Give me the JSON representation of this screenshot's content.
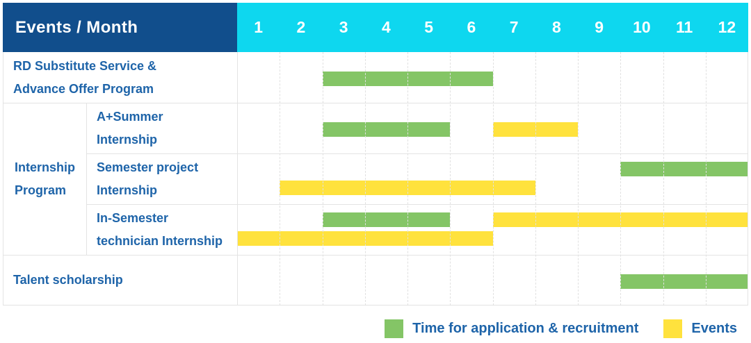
{
  "header": {
    "label": "Events / Month",
    "months": [
      "1",
      "2",
      "3",
      "4",
      "5",
      "6",
      "7",
      "8",
      "9",
      "10",
      "11",
      "12"
    ]
  },
  "group_cell": {
    "label": "Internship Program"
  },
  "legend": {
    "items": [
      {
        "label": "Time for application & recruitment",
        "color_key": "green"
      },
      {
        "label": "Events",
        "color_key": "yellow"
      }
    ]
  },
  "colors": {
    "header_bg": "#114E8C",
    "months_bg": "#0ED7EF",
    "label_text": "#1E64A9",
    "green": "#84C566",
    "yellow": "#FFE23D",
    "grid": "#E3E3E3",
    "grid_dash": "#E0E0E0"
  },
  "chart_data": {
    "type": "bar",
    "subtype": "gantt-month-schedule",
    "title": "Events / Month",
    "x_axis": {
      "label": "Month",
      "ticks": [
        1,
        2,
        3,
        4,
        5,
        6,
        7,
        8,
        9,
        10,
        11,
        12
      ],
      "range": [
        1,
        12
      ]
    },
    "grid": true,
    "legend_position": "bottom-right",
    "series_legend": [
      {
        "name": "Time for application & recruitment",
        "color": "#84C566"
      },
      {
        "name": "Events",
        "color": "#FFE23D"
      }
    ],
    "tasks": [
      {
        "label": "RD Substitute Service & Advance Offer Program",
        "label_lines": [
          "RD Substitute Service &",
          "Advance Offer Program"
        ],
        "group": null,
        "bars": [
          {
            "series": "Time for application & recruitment",
            "color_key": "green",
            "start_month": 3,
            "end_month": 6,
            "lane": "single"
          }
        ]
      },
      {
        "label": "A+Summer Internship",
        "label_lines": [
          "A+Summer",
          "Internship"
        ],
        "group": "Internship Program",
        "bars": [
          {
            "series": "Time for application & recruitment",
            "color_key": "green",
            "start_month": 3,
            "end_month": 5,
            "lane": "single"
          },
          {
            "series": "Events",
            "color_key": "yellow",
            "start_month": 7,
            "end_month": 8,
            "lane": "single"
          }
        ]
      },
      {
        "label": "Semester project Internship",
        "label_lines": [
          "Semester project",
          "Internship"
        ],
        "group": "Internship Program",
        "bars": [
          {
            "series": "Time for application & recruitment",
            "color_key": "green",
            "start_month": 10,
            "end_month": 12,
            "lane": "top"
          },
          {
            "series": "Events",
            "color_key": "yellow",
            "start_month": 2,
            "end_month": 7,
            "lane": "bottom"
          }
        ]
      },
      {
        "label": "In-Semester technician Internship",
        "label_lines": [
          "In-Semester",
          "technician Internship"
        ],
        "group": "Internship Program",
        "bars": [
          {
            "series": "Time for application & recruitment",
            "color_key": "green",
            "start_month": 3,
            "end_month": 5,
            "lane": "top"
          },
          {
            "series": "Events",
            "color_key": "yellow",
            "start_month": 7,
            "end_month": 12,
            "lane": "top"
          },
          {
            "series": "Events",
            "color_key": "yellow",
            "start_month": 1,
            "end_month": 6,
            "lane": "bottom"
          }
        ]
      },
      {
        "label": "Talent scholarship",
        "label_lines": [
          "Talent scholarship"
        ],
        "group": null,
        "bars": [
          {
            "series": "Time for application & recruitment",
            "color_key": "green",
            "start_month": 10,
            "end_month": 12,
            "lane": "single"
          }
        ]
      }
    ]
  }
}
